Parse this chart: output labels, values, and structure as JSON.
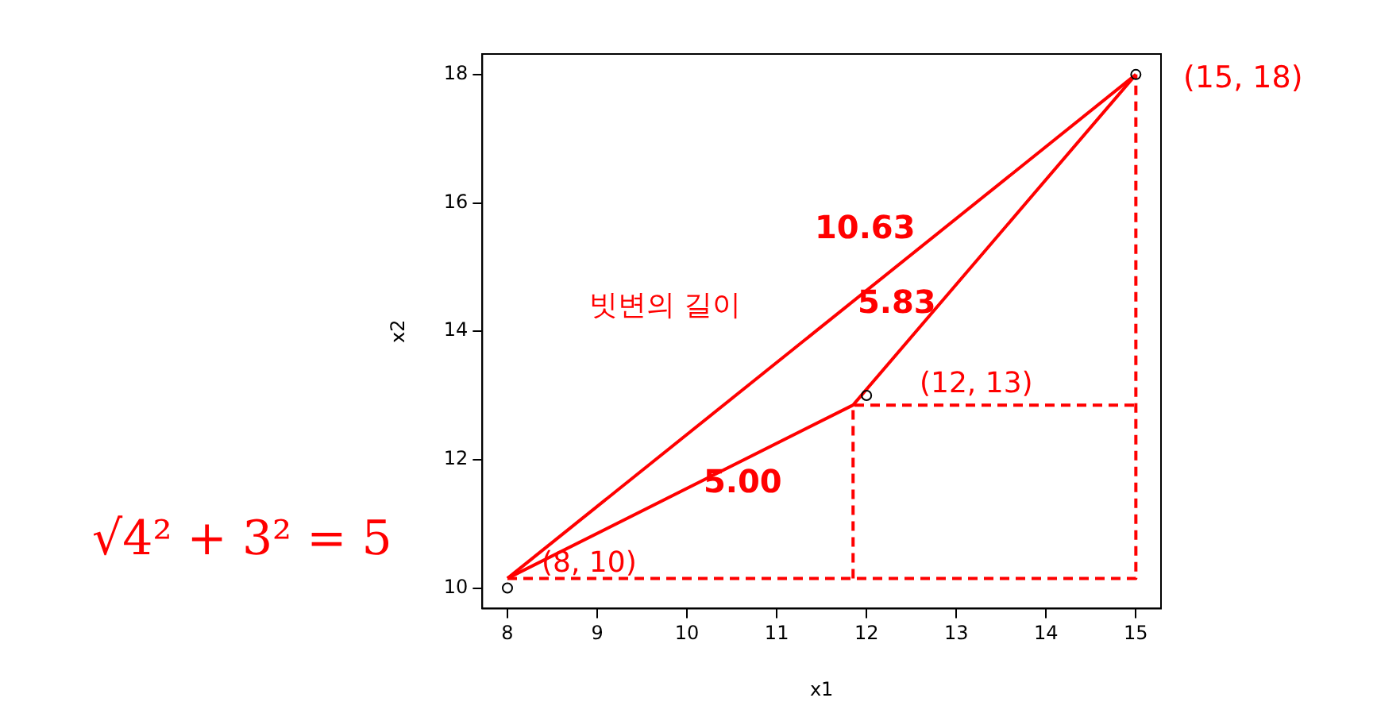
{
  "chart_data": {
    "type": "scatter",
    "xlabel": "x1",
    "ylabel": "x2",
    "xlim": [
      7.72,
      15.28
    ],
    "ylim": [
      9.68,
      18.32
    ],
    "xticks": [
      8,
      9,
      10,
      11,
      12,
      13,
      14,
      15
    ],
    "yticks": [
      10,
      12,
      14,
      16,
      18
    ],
    "grid": false,
    "legend": false,
    "series": [
      {
        "marker": "circle",
        "color": "#000000",
        "x": [
          8,
          12,
          15
        ],
        "values": [
          10,
          13,
          18
        ]
      },
      {
        "type": "line",
        "marker": "none",
        "color": "#ff0000",
        "line_style": "solid",
        "x": [
          8,
          15
        ],
        "values": [
          10.15,
          18
        ]
      },
      {
        "type": "line",
        "marker": "none",
        "color": "#ff0000",
        "line_style": "solid",
        "x": [
          8,
          11.85,
          15
        ],
        "values": [
          10.15,
          12.85,
          18
        ]
      },
      {
        "type": "line",
        "marker": "none",
        "color": "#ff0000",
        "line_style": "dashed",
        "x": [
          8,
          15,
          15
        ],
        "values": [
          10.15,
          10.15,
          18
        ]
      },
      {
        "type": "line",
        "marker": "none",
        "color": "#ff0000",
        "line_style": "dashed",
        "x": [
          11.85,
          11.85,
          15
        ],
        "values": [
          10.15,
          12.85,
          12.85
        ]
      }
    ],
    "annotations": [
      "(8, 10)",
      "(12, 13)",
      "10.63",
      "5.83",
      "5.00",
      "빗변의 길이",
      "(15, 18)",
      "√4² + 3² = 5"
    ]
  }
}
